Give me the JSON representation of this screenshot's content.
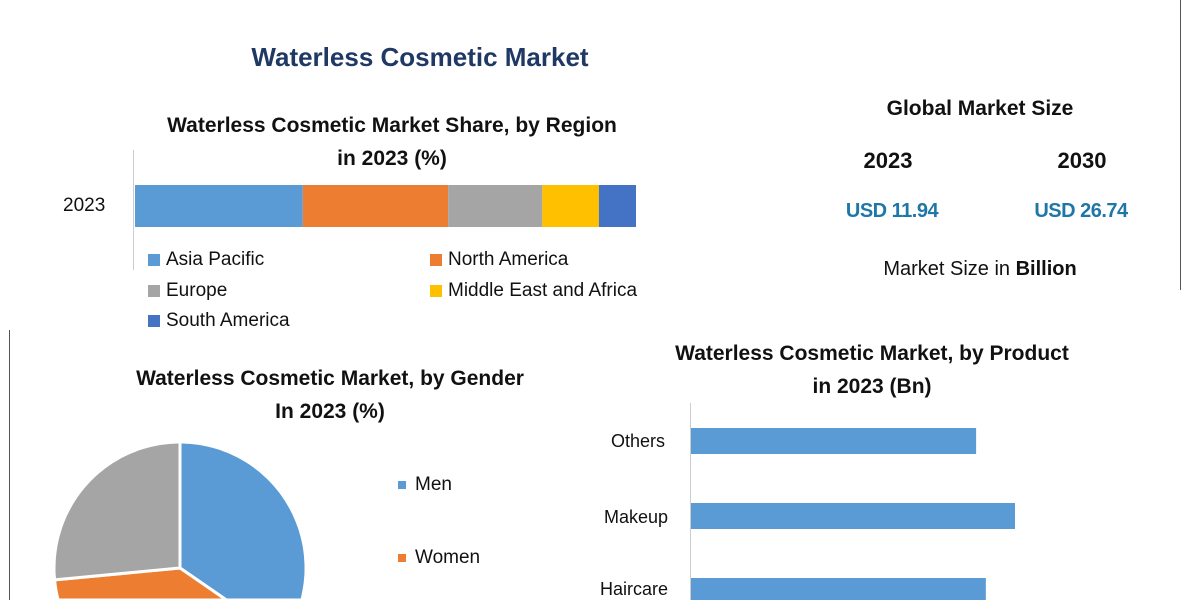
{
  "title": "Waterless Cosmetic Market",
  "global_market": {
    "heading": "Global Market Size",
    "years": [
      "2023",
      "2030"
    ],
    "values": [
      "USD 11.94",
      "USD 26.74"
    ],
    "unit_prefix": "Market Size in ",
    "unit_bold": "Billion"
  },
  "chart_data": [
    {
      "type": "bar",
      "orientation": "horizontal-stacked",
      "title_line1": "Waterless Cosmetic Market Share, by Region",
      "title_line2": "in 2023 (%)",
      "categories": [
        "2023"
      ],
      "series": [
        {
          "name": "Asia Pacific",
          "values": [
            33.5
          ],
          "color": "#5b9bd5"
        },
        {
          "name": "North America",
          "values": [
            29
          ],
          "color": "#ed7d31"
        },
        {
          "name": "Europe",
          "values": [
            18.8
          ],
          "color": "#a5a5a5"
        },
        {
          "name": "Middle East and Africa",
          "values": [
            11.3
          ],
          "color": "#ffc000"
        },
        {
          "name": "South America",
          "values": [
            7.4
          ],
          "color": "#4472c4"
        }
      ],
      "xlim": [
        0,
        100
      ],
      "legend": "bottom"
    },
    {
      "type": "pie",
      "title_line1": "Waterless Cosmetic Market, by Gender",
      "title_line2": "In 2023 (%)",
      "slices": [
        {
          "name": "Men",
          "value": 44,
          "color": "#5b9bd5"
        },
        {
          "name": "Women",
          "value": 29.5,
          "color": "#ed7d31"
        },
        {
          "value": 26.5,
          "color": "#a5a5a5"
        }
      ],
      "legend": "right"
    },
    {
      "type": "bar",
      "orientation": "horizontal",
      "title_line1": "Waterless Cosmetic Market, by Product",
      "title_line2": "in 2023 (Bn)",
      "categories": [
        "Others",
        "Makeup",
        "Haircare"
      ],
      "values": [
        0.88,
        1.0,
        0.91
      ],
      "color": "#5b9bd5",
      "xlim": [
        0,
        1.0
      ]
    }
  ]
}
